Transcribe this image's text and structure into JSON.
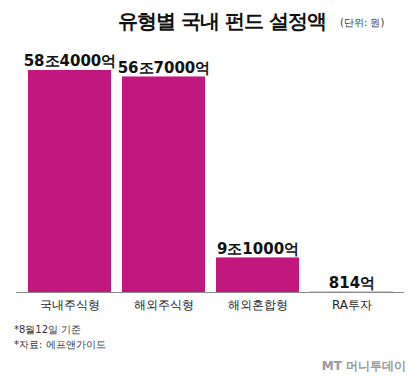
{
  "chart_data": {
    "type": "bar",
    "title": "유형별 국내 펀드 설정액",
    "subtitle": "(단위: 원)",
    "categories": [
      "국내주식형",
      "해외주식형",
      "해외혼합형",
      "RA투자"
    ],
    "values": [
      58400000000000,
      56700000000000,
      9100000000000,
      81400000000
    ],
    "value_labels": [
      "58조4000억",
      "56조7000억",
      "9조1000억",
      "814억"
    ],
    "color": "#c2177e",
    "ylim": [
      0,
      58400000000000
    ],
    "data_labels": true,
    "tick_labels": "x",
    "grid": false,
    "notes": [
      "*8월12일 기준",
      "*자료: 에프앤가이드"
    ],
    "brand": "MT 머니투데이"
  }
}
